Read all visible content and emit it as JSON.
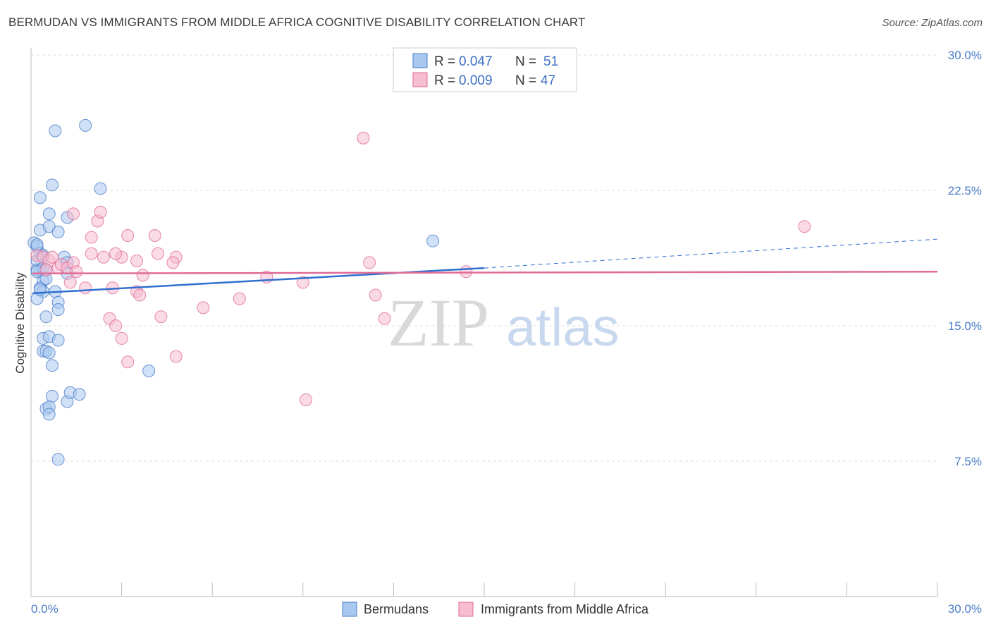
{
  "header": {
    "title": "BERMUDAN VS IMMIGRANTS FROM MIDDLE AFRICA COGNITIVE DISABILITY CORRELATION CHART",
    "source": "Source: ZipAtlas.com"
  },
  "watermark": {
    "zip": "ZIP",
    "atlas": "atlas"
  },
  "colors": {
    "blue": "#4a7cc7",
    "blue_fill": "#a9c8f0",
    "blue_line": "#2f6fcf",
    "pink": "#e06b96",
    "pink_fill": "#f6bcd0",
    "grid": "#dddddd"
  },
  "legend": {
    "rows": [
      {
        "r_label": "R =",
        "r_value": "0.047",
        "n_label": "N =",
        "n_value": "51"
      },
      {
        "r_label": "R =",
        "r_value": "0.009",
        "n_label": "N =",
        "n_value": "47"
      }
    ]
  },
  "chart_data": {
    "type": "scatter",
    "title": "BERMUDAN VS IMMIGRANTS FROM MIDDLE AFRICA COGNITIVE DISABILITY CORRELATION CHART",
    "ylabel": "Cognitive Disability",
    "xlabel": "",
    "xlim": [
      0,
      30
    ],
    "ylim": [
      0,
      30
    ],
    "x_tick_labels": [
      "0.0%",
      "30.0%"
    ],
    "y_ticks": [
      7.5,
      15.0,
      22.5,
      30.0
    ],
    "y_tick_labels": [
      "7.5%",
      "15.0%",
      "22.5%",
      "30.0%"
    ],
    "grid": true,
    "legend_position": "bottom",
    "series": [
      {
        "name": "Bermudans",
        "color": "#4a7cc7",
        "trend": {
          "x": [
            0.05,
            15.0
          ],
          "y": [
            16.8,
            18.2
          ],
          "dashed_to": [
            30.0,
            19.8
          ]
        },
        "points": [
          [
            0.1,
            19.6
          ],
          [
            0.2,
            19.4
          ],
          [
            0.2,
            18.6
          ],
          [
            0.3,
            19.0
          ],
          [
            0.3,
            18.1
          ],
          [
            0.2,
            18.1
          ],
          [
            0.4,
            17.5
          ],
          [
            0.3,
            17.1
          ],
          [
            0.4,
            16.9
          ],
          [
            0.2,
            16.5
          ],
          [
            0.3,
            20.3
          ],
          [
            0.3,
            22.1
          ],
          [
            0.6,
            20.5
          ],
          [
            0.6,
            21.2
          ],
          [
            0.7,
            22.8
          ],
          [
            0.8,
            25.8
          ],
          [
            1.8,
            26.1
          ],
          [
            1.2,
            21.0
          ],
          [
            2.3,
            22.6
          ],
          [
            0.9,
            20.2
          ],
          [
            1.1,
            18.8
          ],
          [
            1.2,
            18.5
          ],
          [
            1.2,
            17.9
          ],
          [
            0.8,
            16.9
          ],
          [
            0.5,
            17.6
          ],
          [
            0.9,
            16.3
          ],
          [
            0.9,
            15.9
          ],
          [
            0.5,
            15.5
          ],
          [
            0.4,
            14.3
          ],
          [
            0.6,
            14.4
          ],
          [
            0.9,
            14.2
          ],
          [
            0.4,
            13.6
          ],
          [
            0.5,
            13.6
          ],
          [
            0.6,
            13.5
          ],
          [
            0.7,
            12.8
          ],
          [
            0.7,
            11.1
          ],
          [
            0.5,
            10.4
          ],
          [
            0.6,
            10.5
          ],
          [
            0.6,
            10.1
          ],
          [
            1.2,
            10.8
          ],
          [
            1.3,
            11.3
          ],
          [
            1.6,
            11.2
          ],
          [
            3.9,
            12.5
          ],
          [
            0.9,
            7.6
          ],
          [
            13.3,
            19.7
          ],
          [
            0.4,
            18.2
          ],
          [
            0.2,
            18.0
          ],
          [
            0.4,
            18.9
          ],
          [
            0.3,
            17.0
          ],
          [
            0.5,
            18.1
          ],
          [
            0.2,
            19.5
          ]
        ]
      },
      {
        "name": "Immigrants from Middle Africa",
        "color": "#e06b96",
        "trend": {
          "x": [
            0.05,
            30.0
          ],
          "y": [
            17.9,
            18.0
          ]
        },
        "points": [
          [
            0.2,
            18.9
          ],
          [
            0.4,
            18.8
          ],
          [
            0.6,
            18.6
          ],
          [
            0.7,
            18.8
          ],
          [
            0.9,
            18.2
          ],
          [
            1.0,
            18.4
          ],
          [
            1.2,
            18.2
          ],
          [
            1.4,
            18.5
          ],
          [
            1.5,
            18.0
          ],
          [
            1.3,
            17.4
          ],
          [
            1.8,
            17.1
          ],
          [
            1.4,
            21.2
          ],
          [
            2.2,
            20.8
          ],
          [
            2.3,
            21.3
          ],
          [
            2.0,
            19.9
          ],
          [
            2.0,
            19.0
          ],
          [
            2.4,
            18.8
          ],
          [
            2.7,
            17.1
          ],
          [
            3.0,
            18.8
          ],
          [
            3.2,
            20.0
          ],
          [
            3.5,
            18.6
          ],
          [
            3.7,
            17.8
          ],
          [
            4.1,
            20.0
          ],
          [
            4.2,
            19.0
          ],
          [
            4.8,
            18.8
          ],
          [
            4.7,
            18.5
          ],
          [
            3.5,
            16.9
          ],
          [
            3.6,
            16.7
          ],
          [
            2.6,
            15.4
          ],
          [
            2.8,
            15.0
          ],
          [
            3.0,
            14.3
          ],
          [
            4.3,
            15.5
          ],
          [
            3.2,
            13.0
          ],
          [
            4.8,
            13.3
          ],
          [
            5.7,
            16.0
          ],
          [
            6.9,
            16.5
          ],
          [
            7.8,
            17.7
          ],
          [
            9.0,
            17.4
          ],
          [
            9.1,
            10.9
          ],
          [
            11.2,
            18.5
          ],
          [
            11.4,
            16.7
          ],
          [
            11.7,
            15.4
          ],
          [
            11.0,
            25.4
          ],
          [
            14.4,
            18.0
          ],
          [
            25.6,
            20.5
          ],
          [
            0.5,
            18.1
          ],
          [
            2.8,
            19.0
          ]
        ]
      }
    ]
  },
  "bottom_legend": {
    "items": [
      {
        "label": "Bermudans"
      },
      {
        "label": "Immigrants from Middle Africa"
      }
    ]
  }
}
